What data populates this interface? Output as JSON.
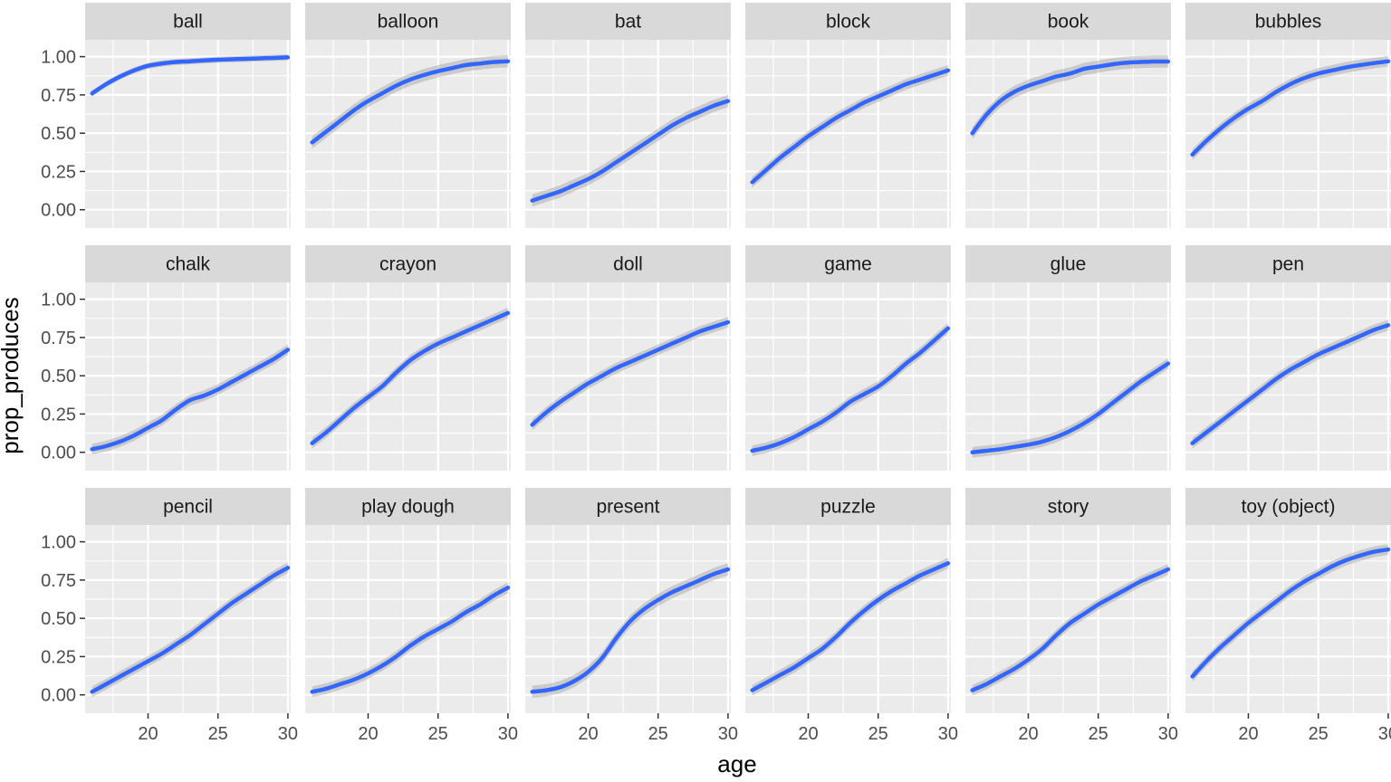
{
  "chart_data": {
    "type": "line",
    "facet_layout": {
      "rows": 3,
      "cols": 6
    },
    "xlabel": "age",
    "ylabel": "prop_produces",
    "xlim": [
      15.5,
      30.2
    ],
    "ylim": [
      -0.12,
      1.11
    ],
    "x_ticks": [
      20,
      25,
      30
    ],
    "y_ticks": [
      0.0,
      0.25,
      0.5,
      0.75,
      1.0
    ],
    "y_tick_labels": [
      "0.00",
      "0.25",
      "0.50",
      "0.75",
      "1.00"
    ],
    "grid": true,
    "line_color": "#3366ff",
    "x": [
      16,
      17,
      18,
      19,
      20,
      21,
      22,
      23,
      24,
      25,
      26,
      27,
      28,
      29,
      30
    ],
    "series": [
      {
        "name": "ball",
        "values": [
          0.76,
          0.82,
          0.87,
          0.91,
          0.94,
          0.955,
          0.965,
          0.97,
          0.975,
          0.98,
          0.983,
          0.986,
          0.989,
          0.992,
          0.995
        ],
        "band": 0.02
      },
      {
        "name": "balloon",
        "values": [
          0.44,
          0.51,
          0.58,
          0.65,
          0.71,
          0.76,
          0.81,
          0.85,
          0.88,
          0.905,
          0.925,
          0.945,
          0.955,
          0.965,
          0.97
        ],
        "band": 0.04
      },
      {
        "name": "bat",
        "values": [
          0.06,
          0.09,
          0.12,
          0.16,
          0.2,
          0.25,
          0.31,
          0.37,
          0.43,
          0.49,
          0.55,
          0.6,
          0.64,
          0.68,
          0.71
        ],
        "band": 0.04
      },
      {
        "name": "block",
        "values": [
          0.18,
          0.26,
          0.34,
          0.41,
          0.48,
          0.54,
          0.6,
          0.65,
          0.7,
          0.74,
          0.78,
          0.82,
          0.85,
          0.88,
          0.91
        ],
        "band": 0.035
      },
      {
        "name": "book",
        "values": [
          0.5,
          0.62,
          0.71,
          0.77,
          0.81,
          0.84,
          0.87,
          0.89,
          0.92,
          0.935,
          0.95,
          0.96,
          0.965,
          0.968,
          0.968
        ],
        "band": 0.04
      },
      {
        "name": "bubbles",
        "values": [
          0.36,
          0.45,
          0.53,
          0.6,
          0.66,
          0.71,
          0.77,
          0.82,
          0.86,
          0.89,
          0.91,
          0.93,
          0.945,
          0.958,
          0.97
        ],
        "band": 0.035
      },
      {
        "name": "chalk",
        "values": [
          0.02,
          0.04,
          0.07,
          0.11,
          0.16,
          0.21,
          0.28,
          0.34,
          0.37,
          0.41,
          0.46,
          0.51,
          0.56,
          0.61,
          0.67
        ],
        "band": 0.035
      },
      {
        "name": "crayon",
        "values": [
          0.06,
          0.13,
          0.21,
          0.29,
          0.36,
          0.43,
          0.52,
          0.6,
          0.66,
          0.71,
          0.75,
          0.79,
          0.83,
          0.87,
          0.91
        ],
        "band": 0.035
      },
      {
        "name": "doll",
        "values": [
          0.18,
          0.26,
          0.33,
          0.39,
          0.45,
          0.5,
          0.55,
          0.59,
          0.63,
          0.67,
          0.71,
          0.75,
          0.79,
          0.82,
          0.85
        ],
        "band": 0.035
      },
      {
        "name": "game",
        "values": [
          0.01,
          0.03,
          0.06,
          0.1,
          0.15,
          0.2,
          0.26,
          0.33,
          0.38,
          0.43,
          0.5,
          0.58,
          0.65,
          0.73,
          0.81
        ],
        "band": 0.035
      },
      {
        "name": "glue",
        "values": [
          0.0,
          0.01,
          0.02,
          0.035,
          0.05,
          0.07,
          0.1,
          0.14,
          0.19,
          0.25,
          0.32,
          0.39,
          0.46,
          0.52,
          0.58
        ],
        "band": 0.035
      },
      {
        "name": "pen",
        "values": [
          0.06,
          0.13,
          0.2,
          0.27,
          0.34,
          0.41,
          0.48,
          0.54,
          0.59,
          0.64,
          0.68,
          0.72,
          0.76,
          0.8,
          0.83
        ],
        "band": 0.035
      },
      {
        "name": "pencil",
        "values": [
          0.02,
          0.07,
          0.12,
          0.17,
          0.22,
          0.27,
          0.33,
          0.39,
          0.46,
          0.53,
          0.6,
          0.66,
          0.72,
          0.78,
          0.83
        ],
        "band": 0.035
      },
      {
        "name": "play dough",
        "values": [
          0.02,
          0.04,
          0.07,
          0.1,
          0.14,
          0.19,
          0.25,
          0.32,
          0.38,
          0.43,
          0.48,
          0.54,
          0.59,
          0.65,
          0.7
        ],
        "band": 0.035
      },
      {
        "name": "present",
        "values": [
          0.02,
          0.03,
          0.05,
          0.09,
          0.15,
          0.24,
          0.37,
          0.48,
          0.56,
          0.62,
          0.67,
          0.71,
          0.75,
          0.79,
          0.82
        ],
        "band": 0.04
      },
      {
        "name": "puzzle",
        "values": [
          0.03,
          0.08,
          0.13,
          0.18,
          0.24,
          0.3,
          0.38,
          0.47,
          0.55,
          0.62,
          0.68,
          0.73,
          0.78,
          0.82,
          0.86
        ],
        "band": 0.035
      },
      {
        "name": "story",
        "values": [
          0.03,
          0.07,
          0.12,
          0.17,
          0.23,
          0.3,
          0.39,
          0.47,
          0.53,
          0.59,
          0.64,
          0.69,
          0.74,
          0.78,
          0.82
        ],
        "band": 0.035
      },
      {
        "name": "toy (object)",
        "values": [
          0.12,
          0.22,
          0.31,
          0.39,
          0.47,
          0.54,
          0.61,
          0.68,
          0.74,
          0.79,
          0.84,
          0.88,
          0.91,
          0.935,
          0.95
        ],
        "band": 0.035
      }
    ]
  }
}
